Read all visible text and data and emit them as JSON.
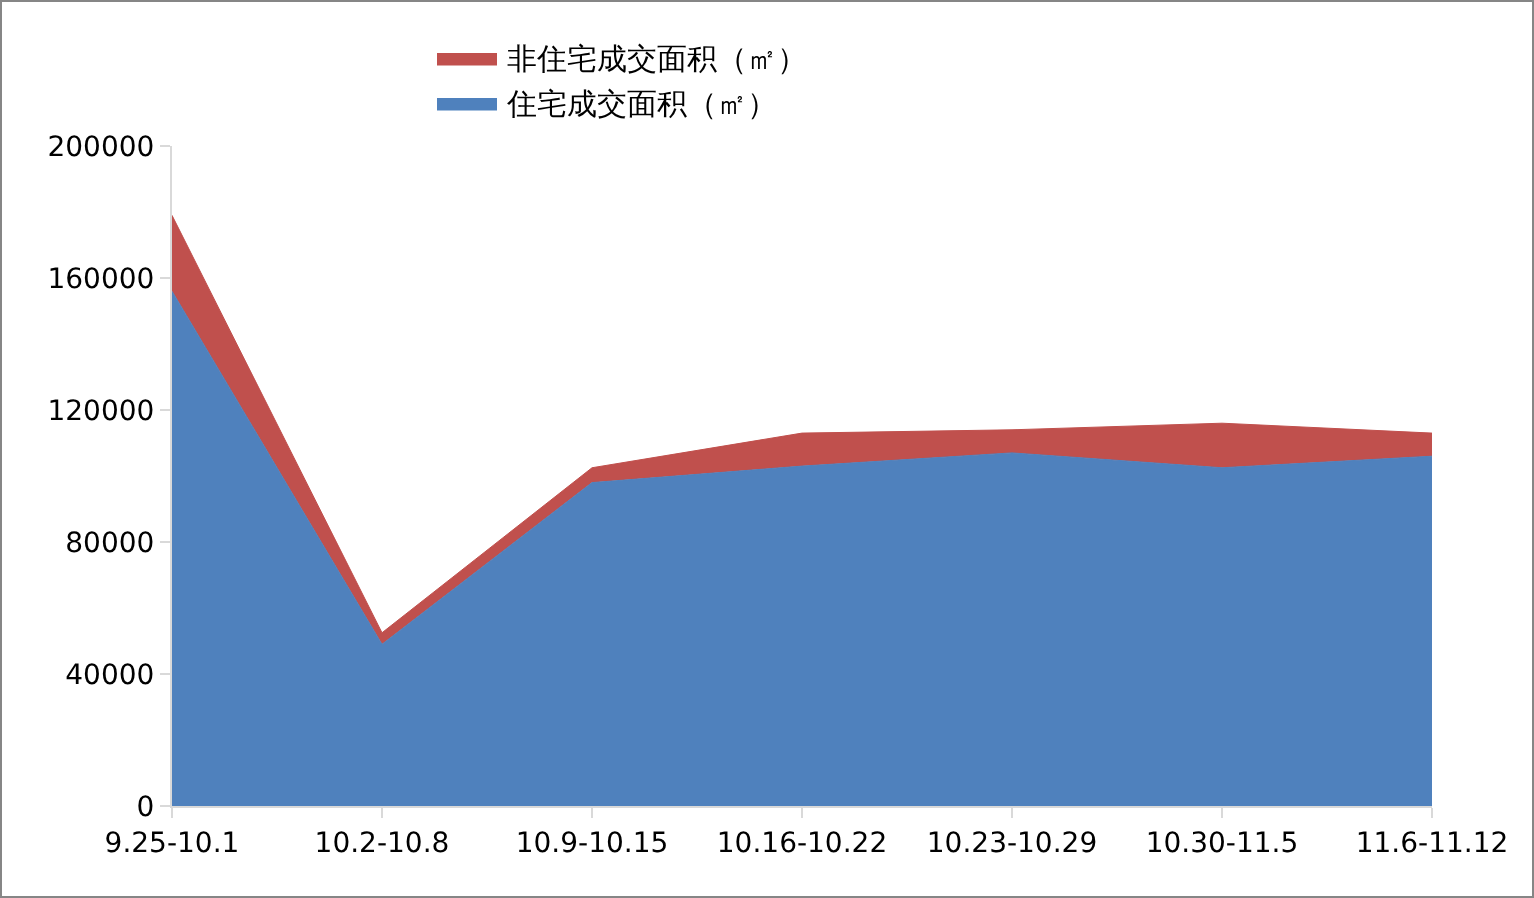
{
  "chart_data": {
    "type": "area",
    "stacked": true,
    "categories": [
      "9.25-10.1",
      "10.2-10.8",
      "10.9-10.15",
      "10.16-10.22",
      "10.23-10.29",
      "10.30-11.5",
      "11.6-11.12"
    ],
    "series": [
      {
        "name": "住宅成交面积（㎡）",
        "color": "#4f81bd",
        "values": [
          156000,
          49000,
          98000,
          103000,
          107000,
          102500,
          106000
        ]
      },
      {
        "name": "非住宅成交面积（㎡）",
        "color": "#c0504d",
        "values": [
          23000,
          3500,
          4500,
          10000,
          7000,
          13500,
          7000
        ]
      }
    ],
    "ylim": [
      0,
      200000
    ],
    "yticks": [
      0,
      40000,
      80000,
      120000,
      160000,
      200000
    ],
    "grid": false,
    "legend": "top"
  }
}
